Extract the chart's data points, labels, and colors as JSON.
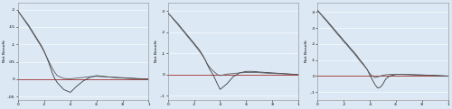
{
  "background_color": "#dce9f5",
  "plot_bg_color": "#dce9f5",
  "line_color1": "#3a3a3a",
  "line_color2": "#5a5a5a",
  "red_line_color": "#aa4444",
  "ylabel": "Net Benefit",
  "xlabel_ticks": [
    0,
    0.2,
    0.4,
    0.6,
    0.8,
    1
  ],
  "xlabel_tick_labels": [
    "0",
    ".2",
    ".4",
    ".6",
    ".8",
    "1"
  ],
  "subplots": [
    {
      "ylim": [
        -0.06,
        0.22
      ],
      "yticks": [
        -0.05,
        0,
        0.05,
        0.1,
        0.15,
        0.2
      ],
      "ytick_labels": [
        "-.05",
        "0",
        ".05",
        ".1",
        ".15",
        ".2"
      ],
      "curve1_x": [
        0.0,
        0.02,
        0.05,
        0.08,
        0.1,
        0.13,
        0.15,
        0.18,
        0.2,
        0.22,
        0.24,
        0.26,
        0.28,
        0.3,
        0.35,
        0.4,
        0.45,
        0.5,
        0.55,
        0.6,
        0.65,
        0.7,
        0.75,
        0.8,
        0.85,
        0.9,
        0.95,
        1.0
      ],
      "curve1_y": [
        0.195,
        0.185,
        0.17,
        0.155,
        0.143,
        0.125,
        0.113,
        0.095,
        0.08,
        0.062,
        0.042,
        0.02,
        0.002,
        -0.01,
        -0.03,
        -0.038,
        -0.02,
        -0.005,
        0.005,
        0.01,
        0.008,
        0.006,
        0.005,
        0.004,
        0.003,
        0.002,
        0.001,
        0.0
      ],
      "curve2_x": [
        0.0,
        0.02,
        0.05,
        0.08,
        0.1,
        0.13,
        0.15,
        0.18,
        0.2,
        0.22,
        0.24,
        0.26,
        0.28,
        0.3,
        0.35,
        0.4,
        0.45,
        0.5,
        0.55,
        0.6,
        0.65,
        0.7,
        0.75,
        0.8,
        0.85,
        0.9,
        0.95,
        1.0
      ],
      "curve2_y": [
        0.195,
        0.185,
        0.168,
        0.152,
        0.14,
        0.122,
        0.11,
        0.092,
        0.078,
        0.063,
        0.048,
        0.033,
        0.02,
        0.01,
        0.002,
        0.001,
        0.003,
        0.005,
        0.007,
        0.008,
        0.007,
        0.006,
        0.004,
        0.003,
        0.002,
        0.001,
        0.0,
        0.0
      ]
    },
    {
      "ylim": [
        -0.12,
        0.34
      ],
      "yticks": [
        -0.1,
        0,
        0.1,
        0.2,
        0.3
      ],
      "ytick_labels": [
        "-.1",
        "0",
        ".1",
        ".2",
        ".3"
      ],
      "curve1_x": [
        0.0,
        0.02,
        0.05,
        0.08,
        0.1,
        0.13,
        0.15,
        0.18,
        0.2,
        0.23,
        0.25,
        0.27,
        0.29,
        0.3,
        0.32,
        0.35,
        0.38,
        0.4,
        0.45,
        0.5,
        0.55,
        0.6,
        0.65,
        0.7,
        0.75,
        0.8,
        0.85,
        0.9,
        0.95,
        1.0
      ],
      "curve1_y": [
        0.29,
        0.278,
        0.258,
        0.238,
        0.222,
        0.2,
        0.185,
        0.163,
        0.148,
        0.125,
        0.108,
        0.088,
        0.065,
        0.05,
        0.025,
        -0.005,
        -0.045,
        -0.07,
        -0.045,
        -0.01,
        0.008,
        0.015,
        0.015,
        0.012,
        0.01,
        0.008,
        0.006,
        0.004,
        0.002,
        0.0
      ],
      "curve2_x": [
        0.0,
        0.02,
        0.05,
        0.08,
        0.1,
        0.13,
        0.15,
        0.18,
        0.2,
        0.23,
        0.25,
        0.27,
        0.29,
        0.3,
        0.32,
        0.35,
        0.38,
        0.4,
        0.45,
        0.5,
        0.55,
        0.6,
        0.65,
        0.7,
        0.75,
        0.8,
        0.85,
        0.9,
        0.95,
        1.0
      ],
      "curve2_y": [
        0.29,
        0.278,
        0.255,
        0.233,
        0.218,
        0.196,
        0.18,
        0.158,
        0.143,
        0.12,
        0.103,
        0.085,
        0.065,
        0.052,
        0.035,
        0.015,
        0.0,
        -0.005,
        0.002,
        0.005,
        0.008,
        0.01,
        0.01,
        0.009,
        0.007,
        0.005,
        0.004,
        0.003,
        0.001,
        0.0
      ]
    },
    {
      "ylim": [
        -0.15,
        0.46
      ],
      "yticks": [
        -0.1,
        0,
        0.1,
        0.2,
        0.3,
        0.4
      ],
      "ytick_labels": [
        "-.1",
        "0",
        ".1",
        ".2",
        ".3",
        ".4"
      ],
      "curve1_x": [
        0.0,
        0.02,
        0.05,
        0.08,
        0.1,
        0.13,
        0.15,
        0.18,
        0.2,
        0.23,
        0.25,
        0.28,
        0.3,
        0.32,
        0.35,
        0.38,
        0.4,
        0.42,
        0.44,
        0.46,
        0.48,
        0.5,
        0.52,
        0.55,
        0.6,
        0.65,
        0.7,
        0.75,
        0.8,
        0.85,
        0.9,
        0.95,
        1.0
      ],
      "curve1_y": [
        0.41,
        0.392,
        0.365,
        0.338,
        0.318,
        0.29,
        0.27,
        0.242,
        0.222,
        0.195,
        0.175,
        0.148,
        0.128,
        0.105,
        0.075,
        0.04,
        0.005,
        -0.025,
        -0.055,
        -0.075,
        -0.07,
        -0.05,
        -0.02,
        0.0,
        0.01,
        0.01,
        0.009,
        0.008,
        0.007,
        0.005,
        0.004,
        0.002,
        0.0
      ],
      "curve2_x": [
        0.0,
        0.02,
        0.05,
        0.08,
        0.1,
        0.13,
        0.15,
        0.18,
        0.2,
        0.23,
        0.25,
        0.28,
        0.3,
        0.32,
        0.35,
        0.38,
        0.4,
        0.42,
        0.44,
        0.46,
        0.48,
        0.5,
        0.52,
        0.55,
        0.6,
        0.65,
        0.7,
        0.75,
        0.8,
        0.85,
        0.9,
        0.95,
        1.0
      ],
      "curve2_y": [
        0.41,
        0.39,
        0.36,
        0.332,
        0.312,
        0.283,
        0.263,
        0.235,
        0.215,
        0.188,
        0.168,
        0.14,
        0.12,
        0.098,
        0.07,
        0.04,
        0.015,
        0.0,
        -0.01,
        -0.005,
        0.0,
        0.005,
        0.008,
        0.01,
        0.01,
        0.01,
        0.009,
        0.007,
        0.006,
        0.004,
        0.003,
        0.001,
        0.0
      ]
    }
  ]
}
